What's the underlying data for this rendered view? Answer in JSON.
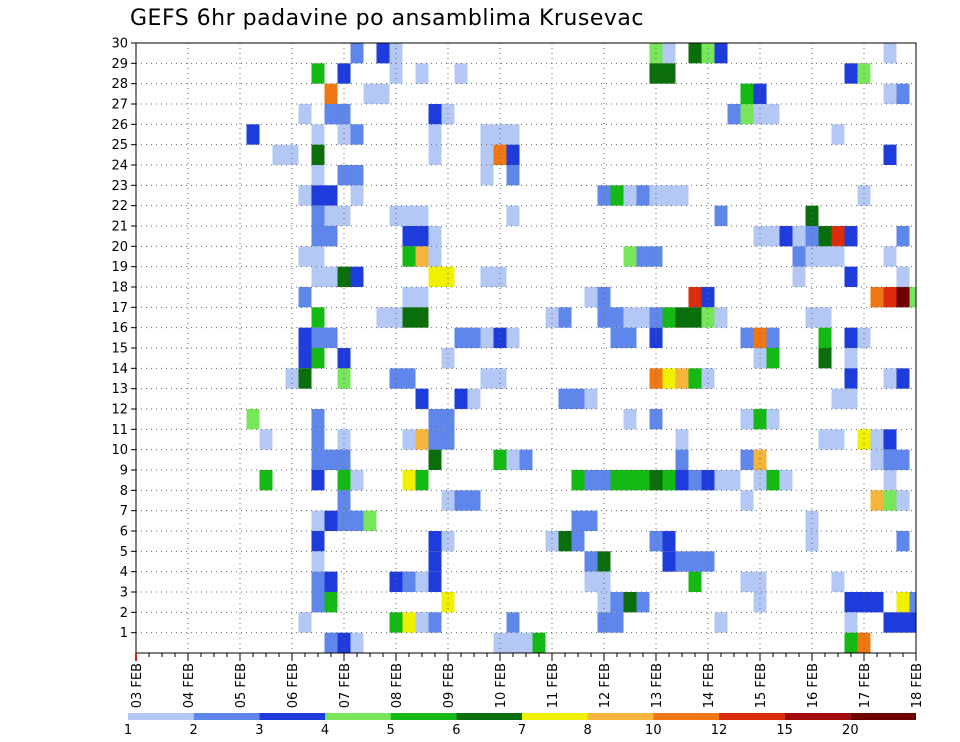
{
  "chart_data": {
    "type": "heatmap",
    "title": "GEFS 6hr padavine po ansamblima Krusevac",
    "xlabel": "",
    "ylabel": "",
    "x_tick_labels": [
      "03 FEB",
      "04 FEB",
      "05 FEB",
      "06 FEB",
      "07 FEB",
      "08 FEB",
      "09 FEB",
      "10 FEB",
      "11 FEB",
      "12 FEB",
      "13 FEB",
      "14 FEB",
      "15 FEB",
      "16 FEB",
      "17 FEB",
      "18 FEB"
    ],
    "y_tick_labels": [
      "1",
      "2",
      "3",
      "4",
      "5",
      "6",
      "7",
      "8",
      "9",
      "10",
      "11",
      "12",
      "13",
      "14",
      "15",
      "16",
      "17",
      "18",
      "19",
      "20",
      "21",
      "22",
      "23",
      "24",
      "25",
      "26",
      "27",
      "28",
      "29",
      "30"
    ],
    "x_range": [
      0,
      60
    ],
    "y_range": [
      0,
      30
    ],
    "time_step_hours": 6,
    "colorbar": {
      "labels": [
        "1",
        "2",
        "3",
        "4",
        "5",
        "6",
        "7",
        "8",
        "10",
        "12",
        "15",
        "20"
      ],
      "colors": [
        "#b4c8f5",
        "#5f87eb",
        "#1e3cdc",
        "#78e65a",
        "#14b914",
        "#0a6e0a",
        "#f0f000",
        "#f5b43c",
        "#f07814",
        "#dc2d0a",
        "#a00a0a",
        "#6e0000"
      ]
    },
    "cells_description": "Each cell = [time_index, member, color_class]; time_index 0 = 03 FEB 00Z, 4 steps per day; color_class indexes colorbar.colors",
    "cells": [
      [
        17,
        30,
        1
      ],
      [
        19,
        30,
        2
      ],
      [
        20,
        30,
        0
      ],
      [
        40,
        30,
        3
      ],
      [
        41,
        30,
        0
      ],
      [
        43,
        30,
        5
      ],
      [
        44,
        30,
        3
      ],
      [
        45,
        30,
        2
      ],
      [
        58,
        30,
        0
      ],
      [
        14,
        29,
        4
      ],
      [
        16,
        29,
        2
      ],
      [
        20,
        29,
        0
      ],
      [
        22,
        29,
        0
      ],
      [
        25,
        29,
        0
      ],
      [
        40,
        29,
        5
      ],
      [
        41,
        29,
        5
      ],
      [
        55,
        29,
        2
      ],
      [
        56,
        29,
        3
      ],
      [
        15,
        28,
        8
      ],
      [
        18,
        28,
        0
      ],
      [
        19,
        28,
        0
      ],
      [
        47,
        28,
        4
      ],
      [
        48,
        28,
        2
      ],
      [
        58,
        28,
        0
      ],
      [
        59,
        28,
        1
      ],
      [
        13,
        27,
        0
      ],
      [
        15,
        27,
        1
      ],
      [
        16,
        27,
        1
      ],
      [
        23,
        27,
        2
      ],
      [
        24,
        27,
        0
      ],
      [
        46,
        27,
        1
      ],
      [
        47,
        27,
        3
      ],
      [
        48,
        27,
        0
      ],
      [
        49,
        27,
        0
      ],
      [
        9,
        26,
        2
      ],
      [
        14,
        26,
        0
      ],
      [
        16,
        26,
        0
      ],
      [
        17,
        26,
        1
      ],
      [
        23,
        26,
        0
      ],
      [
        27,
        26,
        0
      ],
      [
        28,
        26,
        0
      ],
      [
        29,
        26,
        0
      ],
      [
        54,
        26,
        0
      ],
      [
        11,
        25,
        0
      ],
      [
        12,
        25,
        0
      ],
      [
        14,
        25,
        5
      ],
      [
        23,
        25,
        0
      ],
      [
        27,
        25,
        0
      ],
      [
        28,
        25,
        8
      ],
      [
        29,
        25,
        2
      ],
      [
        58,
        25,
        2
      ],
      [
        14,
        24,
        0
      ],
      [
        16,
        24,
        1
      ],
      [
        17,
        24,
        1
      ],
      [
        27,
        24,
        0
      ],
      [
        29,
        24,
        1
      ],
      [
        13,
        23,
        0
      ],
      [
        14,
        23,
        2
      ],
      [
        15,
        23,
        2
      ],
      [
        17,
        23,
        0
      ],
      [
        36,
        23,
        1
      ],
      [
        37,
        23,
        4
      ],
      [
        38,
        23,
        0
      ],
      [
        39,
        23,
        1
      ],
      [
        40,
        23,
        0
      ],
      [
        41,
        23,
        0
      ],
      [
        42,
        23,
        0
      ],
      [
        56,
        23,
        0
      ],
      [
        14,
        22,
        1
      ],
      [
        15,
        22,
        0
      ],
      [
        16,
        22,
        0
      ],
      [
        20,
        22,
        0
      ],
      [
        21,
        22,
        0
      ],
      [
        22,
        22,
        0
      ],
      [
        29,
        22,
        0
      ],
      [
        45,
        22,
        1
      ],
      [
        52,
        22,
        5
      ],
      [
        14,
        21,
        1
      ],
      [
        15,
        21,
        1
      ],
      [
        21,
        21,
        2
      ],
      [
        22,
        21,
        2
      ],
      [
        23,
        21,
        0
      ],
      [
        48,
        21,
        0
      ],
      [
        49,
        21,
        0
      ],
      [
        50,
        21,
        2
      ],
      [
        51,
        21,
        0
      ],
      [
        52,
        21,
        1
      ],
      [
        53,
        21,
        5
      ],
      [
        54,
        21,
        9
      ],
      [
        55,
        21,
        2
      ],
      [
        59,
        21,
        1
      ],
      [
        13,
        20,
        0
      ],
      [
        14,
        20,
        0
      ],
      [
        21,
        20,
        4
      ],
      [
        22,
        20,
        7
      ],
      [
        23,
        20,
        0
      ],
      [
        38,
        20,
        3
      ],
      [
        39,
        20,
        1
      ],
      [
        40,
        20,
        1
      ],
      [
        51,
        20,
        1
      ],
      [
        52,
        20,
        0
      ],
      [
        53,
        20,
        0
      ],
      [
        54,
        20,
        0
      ],
      [
        58,
        20,
        0
      ],
      [
        14,
        19,
        0
      ],
      [
        15,
        19,
        0
      ],
      [
        16,
        19,
        5
      ],
      [
        17,
        19,
        2
      ],
      [
        23,
        19,
        6
      ],
      [
        24,
        19,
        6
      ],
      [
        27,
        19,
        0
      ],
      [
        28,
        19,
        0
      ],
      [
        51,
        19,
        0
      ],
      [
        55,
        19,
        2
      ],
      [
        59,
        19,
        0
      ],
      [
        13,
        18,
        1
      ],
      [
        21,
        18,
        0
      ],
      [
        22,
        18,
        0
      ],
      [
        35,
        18,
        0
      ],
      [
        36,
        18,
        1
      ],
      [
        43,
        18,
        9
      ],
      [
        44,
        18,
        2
      ],
      [
        57,
        18,
        8
      ],
      [
        58,
        18,
        9
      ],
      [
        59,
        18,
        11
      ],
      [
        60,
        18,
        3
      ],
      [
        14,
        17,
        4
      ],
      [
        19,
        17,
        0
      ],
      [
        20,
        17,
        0
      ],
      [
        21,
        17,
        5
      ],
      [
        22,
        17,
        5
      ],
      [
        32,
        17,
        0
      ],
      [
        33,
        17,
        1
      ],
      [
        36,
        17,
        1
      ],
      [
        37,
        17,
        1
      ],
      [
        38,
        17,
        0
      ],
      [
        39,
        17,
        0
      ],
      [
        40,
        17,
        1
      ],
      [
        41,
        17,
        4
      ],
      [
        42,
        17,
        5
      ],
      [
        43,
        17,
        5
      ],
      [
        44,
        17,
        3
      ],
      [
        45,
        17,
        0
      ],
      [
        52,
        17,
        0
      ],
      [
        53,
        17,
        0
      ],
      [
        13,
        16,
        2
      ],
      [
        14,
        16,
        1
      ],
      [
        15,
        16,
        1
      ],
      [
        25,
        16,
        1
      ],
      [
        26,
        16,
        1
      ],
      [
        27,
        16,
        0
      ],
      [
        28,
        16,
        2
      ],
      [
        29,
        16,
        0
      ],
      [
        37,
        16,
        1
      ],
      [
        38,
        16,
        1
      ],
      [
        40,
        16,
        2
      ],
      [
        47,
        16,
        1
      ],
      [
        48,
        16,
        8
      ],
      [
        49,
        16,
        1
      ],
      [
        53,
        16,
        4
      ],
      [
        55,
        16,
        2
      ],
      [
        56,
        16,
        0
      ],
      [
        13,
        15,
        2
      ],
      [
        14,
        15,
        4
      ],
      [
        16,
        15,
        2
      ],
      [
        24,
        15,
        0
      ],
      [
        48,
        15,
        0
      ],
      [
        49,
        15,
        4
      ],
      [
        53,
        15,
        5
      ],
      [
        55,
        15,
        0
      ],
      [
        12,
        14,
        0
      ],
      [
        13,
        14,
        5
      ],
      [
        16,
        14,
        3
      ],
      [
        20,
        14,
        1
      ],
      [
        21,
        14,
        1
      ],
      [
        27,
        14,
        0
      ],
      [
        28,
        14,
        0
      ],
      [
        40,
        14,
        8
      ],
      [
        41,
        14,
        6
      ],
      [
        42,
        14,
        7
      ],
      [
        43,
        14,
        4
      ],
      [
        44,
        14,
        0
      ],
      [
        55,
        14,
        2
      ],
      [
        58,
        14,
        0
      ],
      [
        59,
        14,
        2
      ],
      [
        22,
        13,
        2
      ],
      [
        25,
        13,
        2
      ],
      [
        26,
        13,
        0
      ],
      [
        33,
        13,
        1
      ],
      [
        34,
        13,
        1
      ],
      [
        35,
        13,
        0
      ],
      [
        54,
        13,
        0
      ],
      [
        55,
        13,
        0
      ],
      [
        9,
        12,
        3
      ],
      [
        14,
        12,
        1
      ],
      [
        23,
        12,
        1
      ],
      [
        24,
        12,
        1
      ],
      [
        38,
        12,
        0
      ],
      [
        40,
        12,
        1
      ],
      [
        47,
        12,
        0
      ],
      [
        48,
        12,
        4
      ],
      [
        49,
        12,
        0
      ],
      [
        10,
        11,
        0
      ],
      [
        14,
        11,
        1
      ],
      [
        16,
        11,
        0
      ],
      [
        21,
        11,
        0
      ],
      [
        22,
        11,
        7
      ],
      [
        23,
        11,
        1
      ],
      [
        24,
        11,
        1
      ],
      [
        42,
        11,
        0
      ],
      [
        53,
        11,
        0
      ],
      [
        54,
        11,
        0
      ],
      [
        56,
        11,
        6
      ],
      [
        57,
        11,
        0
      ],
      [
        58,
        11,
        2
      ],
      [
        14,
        10,
        1
      ],
      [
        15,
        10,
        1
      ],
      [
        16,
        10,
        1
      ],
      [
        23,
        10,
        5
      ],
      [
        28,
        10,
        4
      ],
      [
        29,
        10,
        0
      ],
      [
        30,
        10,
        1
      ],
      [
        42,
        10,
        1
      ],
      [
        47,
        10,
        1
      ],
      [
        48,
        10,
        7
      ],
      [
        57,
        10,
        0
      ],
      [
        58,
        10,
        1
      ],
      [
        59,
        10,
        1
      ],
      [
        10,
        9,
        4
      ],
      [
        14,
        9,
        2
      ],
      [
        16,
        9,
        4
      ],
      [
        17,
        9,
        0
      ],
      [
        21,
        9,
        6
      ],
      [
        22,
        9,
        4
      ],
      [
        34,
        9,
        4
      ],
      [
        35,
        9,
        1
      ],
      [
        36,
        9,
        1
      ],
      [
        37,
        9,
        4
      ],
      [
        38,
        9,
        4
      ],
      [
        39,
        9,
        4
      ],
      [
        40,
        9,
        5
      ],
      [
        41,
        9,
        4
      ],
      [
        42,
        9,
        2
      ],
      [
        43,
        9,
        1
      ],
      [
        44,
        9,
        2
      ],
      [
        45,
        9,
        0
      ],
      [
        46,
        9,
        0
      ],
      [
        48,
        9,
        0
      ],
      [
        49,
        9,
        4
      ],
      [
        50,
        9,
        0
      ],
      [
        58,
        9,
        0
      ],
      [
        16,
        8,
        1
      ],
      [
        24,
        8,
        0
      ],
      [
        25,
        8,
        1
      ],
      [
        26,
        8,
        1
      ],
      [
        47,
        8,
        0
      ],
      [
        57,
        8,
        7
      ],
      [
        58,
        8,
        3
      ],
      [
        59,
        8,
        0
      ],
      [
        14,
        7,
        0
      ],
      [
        15,
        7,
        2
      ],
      [
        16,
        7,
        1
      ],
      [
        17,
        7,
        1
      ],
      [
        18,
        7,
        3
      ],
      [
        34,
        7,
        1
      ],
      [
        35,
        7,
        1
      ],
      [
        52,
        7,
        0
      ],
      [
        14,
        6,
        2
      ],
      [
        23,
        6,
        2
      ],
      [
        24,
        6,
        0
      ],
      [
        32,
        6,
        0
      ],
      [
        33,
        6,
        5
      ],
      [
        34,
        6,
        1
      ],
      [
        40,
        6,
        1
      ],
      [
        41,
        6,
        2
      ],
      [
        52,
        6,
        0
      ],
      [
        59,
        6,
        1
      ],
      [
        14,
        5,
        0
      ],
      [
        23,
        5,
        2
      ],
      [
        35,
        5,
        1
      ],
      [
        36,
        5,
        5
      ],
      [
        41,
        5,
        2
      ],
      [
        42,
        5,
        1
      ],
      [
        43,
        5,
        1
      ],
      [
        44,
        5,
        1
      ],
      [
        14,
        4,
        1
      ],
      [
        15,
        4,
        2
      ],
      [
        20,
        4,
        2
      ],
      [
        21,
        4,
        1
      ],
      [
        22,
        4,
        0
      ],
      [
        23,
        4,
        2
      ],
      [
        35,
        4,
        0
      ],
      [
        36,
        4,
        0
      ],
      [
        43,
        4,
        4
      ],
      [
        47,
        4,
        0
      ],
      [
        48,
        4,
        0
      ],
      [
        54,
        4,
        0
      ],
      [
        14,
        3,
        1
      ],
      [
        15,
        3,
        4
      ],
      [
        24,
        3,
        6
      ],
      [
        36,
        3,
        0
      ],
      [
        37,
        3,
        1
      ],
      [
        38,
        3,
        5
      ],
      [
        39,
        3,
        1
      ],
      [
        48,
        3,
        0
      ],
      [
        55,
        3,
        2
      ],
      [
        56,
        3,
        2
      ],
      [
        57,
        3,
        2
      ],
      [
        59,
        3,
        6
      ],
      [
        60,
        3,
        1
      ],
      [
        13,
        2,
        0
      ],
      [
        20,
        2,
        4
      ],
      [
        21,
        2,
        6
      ],
      [
        22,
        2,
        0
      ],
      [
        23,
        2,
        1
      ],
      [
        29,
        2,
        1
      ],
      [
        36,
        2,
        1
      ],
      [
        37,
        2,
        1
      ],
      [
        45,
        2,
        0
      ],
      [
        55,
        2,
        0
      ],
      [
        58,
        2,
        2
      ],
      [
        59,
        2,
        2
      ],
      [
        60,
        2,
        2
      ],
      [
        15,
        1,
        1
      ],
      [
        16,
        1,
        2
      ],
      [
        17,
        1,
        0
      ],
      [
        28,
        1,
        0
      ],
      [
        29,
        1,
        0
      ],
      [
        30,
        1,
        0
      ],
      [
        31,
        1,
        4
      ],
      [
        55,
        1,
        4
      ],
      [
        56,
        1,
        8
      ]
    ]
  }
}
